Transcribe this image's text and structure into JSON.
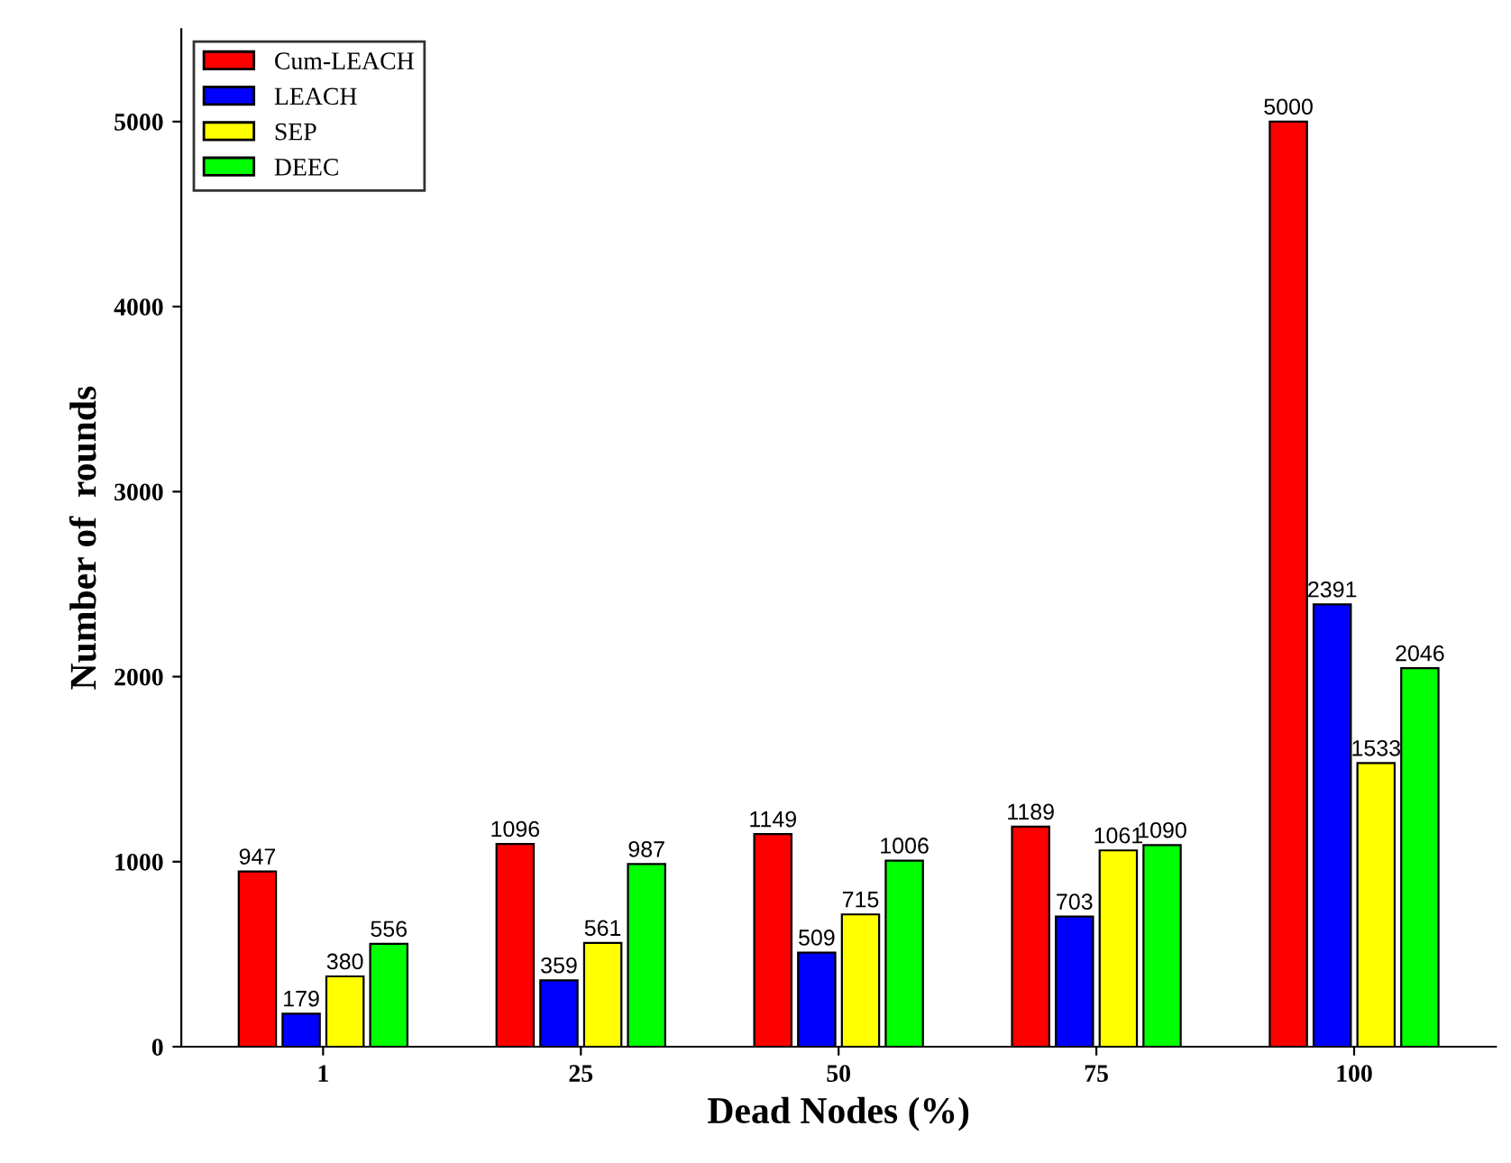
{
  "chart_data": {
    "type": "bar",
    "xlabel": "Dead Nodes (%)",
    "ylabel": "Number of  rounds",
    "categories": [
      "1",
      "25",
      "50",
      "75",
      "100"
    ],
    "series": [
      {
        "name": "Cum-LEACH",
        "color": "#ff0000",
        "values": [
          947,
          1096,
          1149,
          1189,
          5000
        ]
      },
      {
        "name": "LEACH",
        "color": "#0000ff",
        "values": [
          179,
          359,
          509,
          703,
          2391
        ]
      },
      {
        "name": "SEP",
        "color": "#ffff00",
        "values": [
          380,
          561,
          715,
          1061,
          1533
        ]
      },
      {
        "name": "DEEC",
        "color": "#00ff00",
        "values": [
          556,
          987,
          1006,
          1090,
          2046
        ]
      }
    ],
    "ylim": [
      0,
      5500
    ],
    "yticks": [
      0,
      1000,
      2000,
      3000,
      4000,
      5000
    ],
    "grid": false,
    "legend": "top left",
    "data_labels": true
  }
}
